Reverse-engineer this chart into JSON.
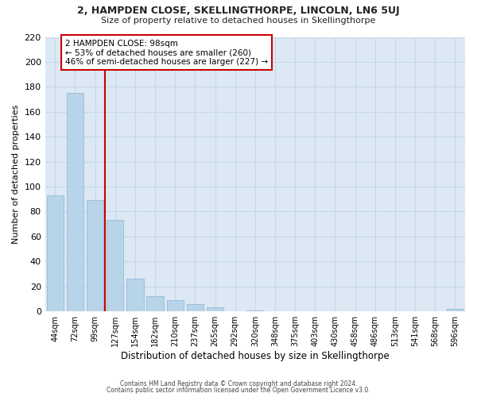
{
  "title": "2, HAMPDEN CLOSE, SKELLINGTHORPE, LINCOLN, LN6 5UJ",
  "subtitle": "Size of property relative to detached houses in Skellingthorpe",
  "xlabel": "Distribution of detached houses by size in Skellingthorpe",
  "ylabel": "Number of detached properties",
  "categories": [
    "44sqm",
    "72sqm",
    "99sqm",
    "127sqm",
    "154sqm",
    "182sqm",
    "210sqm",
    "237sqm",
    "265sqm",
    "292sqm",
    "320sqm",
    "348sqm",
    "375sqm",
    "403sqm",
    "430sqm",
    "458sqm",
    "486sqm",
    "513sqm",
    "541sqm",
    "568sqm",
    "596sqm"
  ],
  "values": [
    93,
    175,
    89,
    73,
    26,
    12,
    9,
    6,
    3,
    0,
    1,
    0,
    0,
    0,
    0,
    0,
    0,
    0,
    0,
    0,
    2
  ],
  "bar_color": "#b8d4e8",
  "bar_edge_color": "#8ab4d0",
  "redline_index": 2,
  "annotation_title": "2 HAMPDEN CLOSE: 98sqm",
  "annotation_line1": "← 53% of detached houses are smaller (260)",
  "annotation_line2": "46% of semi-detached houses are larger (227) →",
  "annotation_box_color": "#ffffff",
  "annotation_box_edge": "#cc0000",
  "redline_color": "#cc0000",
  "ylim": [
    0,
    220
  ],
  "yticks": [
    0,
    20,
    40,
    60,
    80,
    100,
    120,
    140,
    160,
    180,
    200,
    220
  ],
  "grid_color": "#c8d8e8",
  "bg_color": "#dce8f4",
  "fig_bg_color": "#ffffff",
  "footer1": "Contains HM Land Registry data © Crown copyright and database right 2024.",
  "footer2": "Contains public sector information licensed under the Open Government Licence v3.0."
}
